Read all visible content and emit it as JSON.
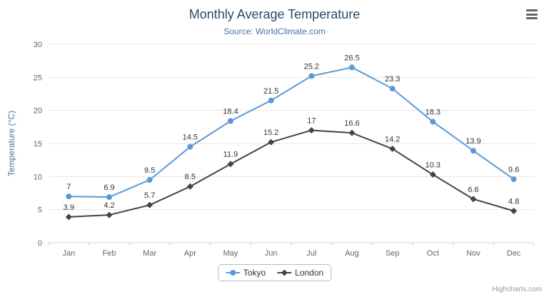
{
  "header": {
    "title": "Monthly Average Temperature",
    "subtitle": "Source: WorldClimate.com"
  },
  "chart_data": {
    "type": "line",
    "title": "Monthly Average Temperature",
    "subtitle": "Source: WorldClimate.com",
    "categories": [
      "Jan",
      "Feb",
      "Mar",
      "Apr",
      "May",
      "Jun",
      "Jul",
      "Aug",
      "Sep",
      "Oct",
      "Nov",
      "Dec"
    ],
    "series": [
      {
        "name": "Tokyo",
        "color": "#5b9bd5",
        "marker": "circle",
        "values": [
          7,
          6.9,
          9.5,
          14.5,
          18.4,
          21.5,
          25.2,
          26.5,
          23.3,
          18.3,
          13.9,
          9.6
        ]
      },
      {
        "name": "London",
        "color": "#434348",
        "marker": "diamond",
        "values": [
          3.9,
          4.2,
          5.7,
          8.5,
          11.9,
          15.2,
          17,
          16.6,
          14.2,
          10.3,
          6.6,
          4.8
        ]
      }
    ],
    "xlabel": "",
    "ylabel": "Temperature (°C)",
    "ylim": [
      0,
      30
    ],
    "ytick_interval": 5,
    "grid": true,
    "legend_position": "bottom",
    "data_labels": true
  },
  "colors": {
    "grid_line": "#e6e6e6",
    "axis_line": "#ccd6eb",
    "axis_label": "#666666",
    "axis_title": "#4d759e",
    "data_label": "#333333",
    "title": "#274b6d",
    "subtitle": "#4572a7"
  },
  "icons": {
    "menu": "hamburger-menu-icon"
  },
  "credits": "Highcharts.com"
}
